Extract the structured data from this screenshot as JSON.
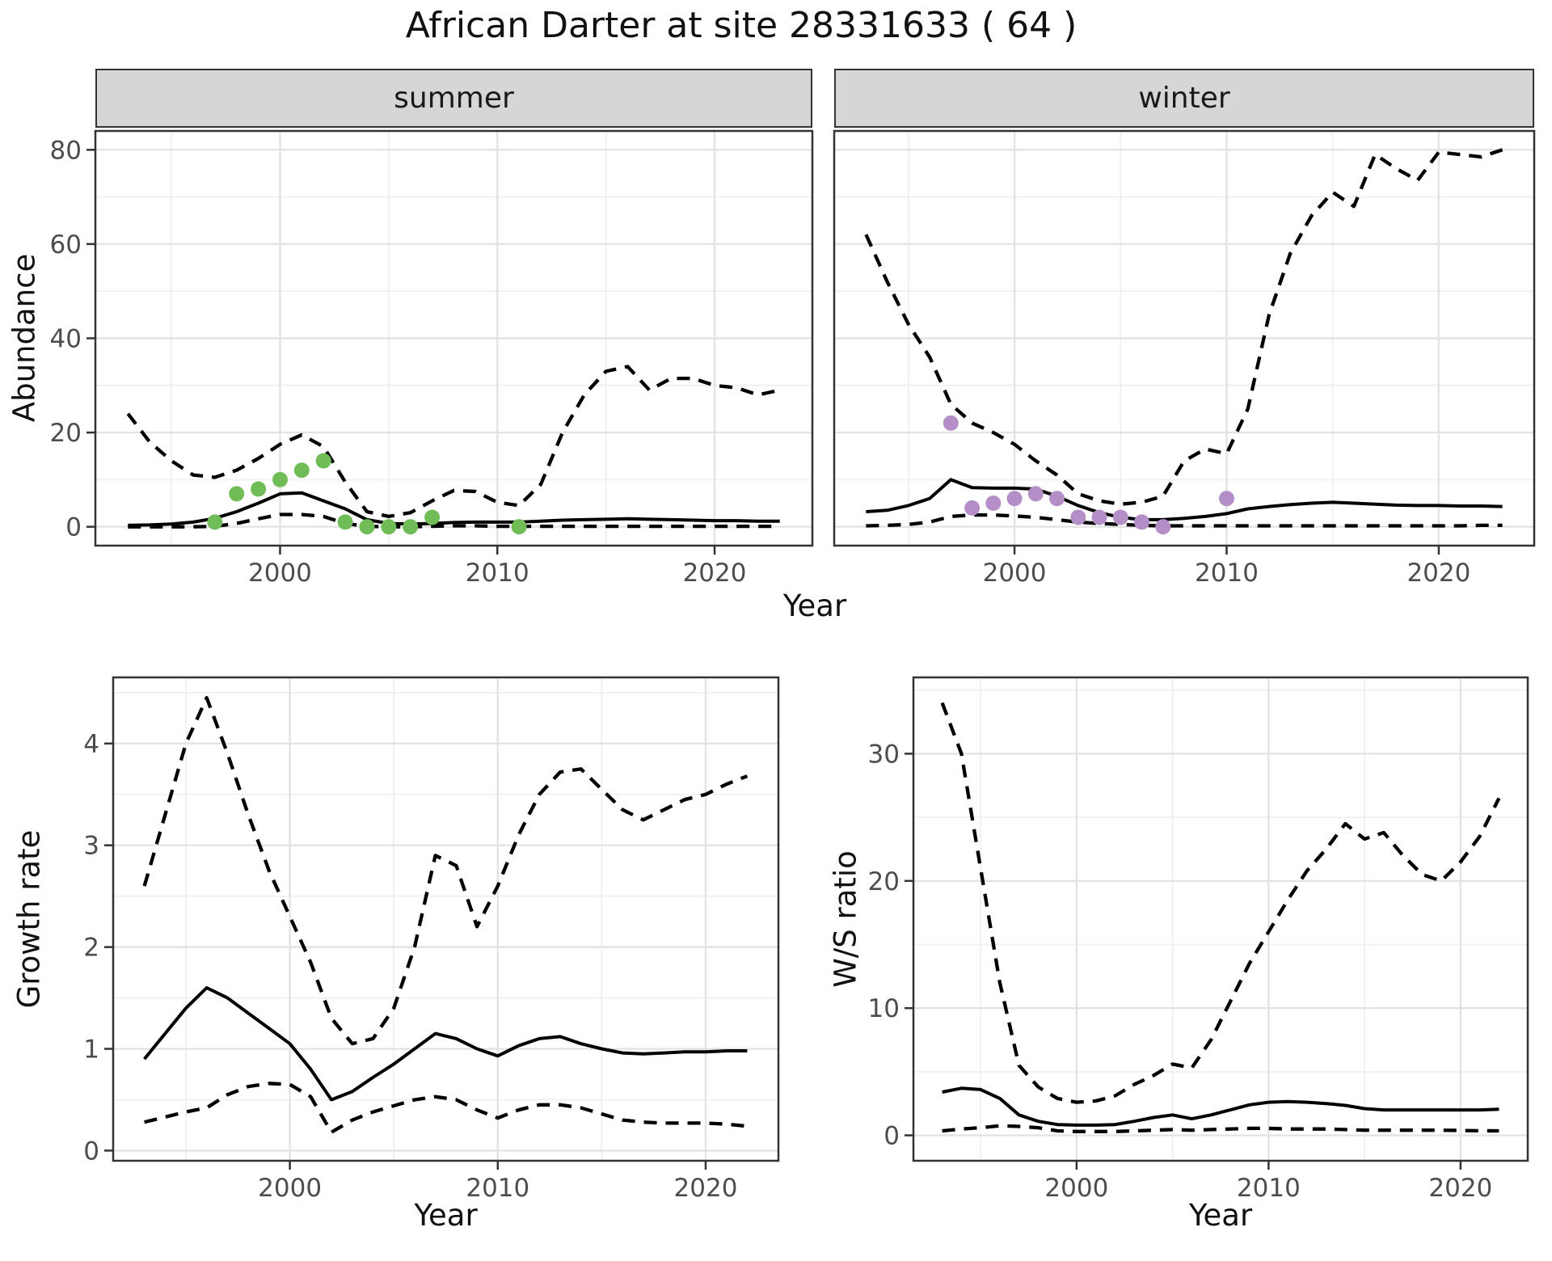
{
  "title": "African Darter at site 28331633 ( 64 )",
  "colors": {
    "summer_points": "#70bd58",
    "winter_points": "#b48ec6",
    "line": "#000000",
    "grid_major": "#e3e3e3",
    "grid_minor": "#f0f0f0",
    "panel_border": "#333333",
    "strip_bg": "#d6d6d6",
    "tick_text": "#4d4d4d"
  },
  "chart_data": [
    {
      "type": "line",
      "panel": "abundance-summer",
      "strip_label": "summer",
      "xlabel": "Year",
      "ylabel": "Abundance",
      "xlim": [
        1991.5,
        2024.5
      ],
      "ylim": [
        -4,
        84
      ],
      "x_ticks": [
        2000,
        2010,
        2020
      ],
      "x_minor": [
        1995,
        2005,
        2015
      ],
      "y_ticks": [
        0,
        20,
        40,
        60,
        80
      ],
      "y_minor": [
        10,
        30,
        50,
        70
      ],
      "grid": true,
      "legend": "none",
      "x": [
        1993,
        1994,
        1995,
        1996,
        1997,
        1998,
        1999,
        2000,
        2001,
        2002,
        2003,
        2004,
        2005,
        2006,
        2007,
        2008,
        2009,
        2010,
        2011,
        2012,
        2013,
        2014,
        2015,
        2016,
        2017,
        2018,
        2019,
        2020,
        2021,
        2022,
        2023
      ],
      "series": [
        {
          "name": "modelled-median",
          "style": "solid",
          "values": [
            0.3,
            0.4,
            0.6,
            1.0,
            1.8,
            3.2,
            5.0,
            7.0,
            7.2,
            5.5,
            3.8,
            1.5,
            0.7,
            0.6,
            0.7,
            0.9,
            1.0,
            1.0,
            1.0,
            1.2,
            1.4,
            1.5,
            1.6,
            1.7,
            1.6,
            1.5,
            1.4,
            1.3,
            1.3,
            1.2,
            1.2
          ]
        },
        {
          "name": "upper-credible-limit",
          "style": "dashed",
          "values": [
            24,
            18,
            14,
            11,
            10.5,
            12,
            14.5,
            17.5,
            19.5,
            17,
            9.5,
            3.2,
            2.2,
            3.0,
            5.5,
            7.7,
            7.5,
            5.2,
            4.5,
            9,
            20,
            28,
            33,
            34,
            29,
            31.5,
            31.5,
            30,
            29.5,
            28,
            29
          ]
        },
        {
          "name": "lower-credible-limit",
          "style": "dashed",
          "values": [
            0,
            0,
            0,
            0,
            0.1,
            0.7,
            1.7,
            2.6,
            2.6,
            2.2,
            0.7,
            0.1,
            0,
            0,
            0.1,
            0.2,
            0.2,
            0.1,
            0.1,
            0.1,
            0.1,
            0.1,
            0.1,
            0.1,
            0.1,
            0.1,
            0.1,
            0.1,
            0.1,
            0.1,
            0.1
          ]
        }
      ],
      "points": {
        "name": "observed-count",
        "color_key": "summer_points",
        "x": [
          1997,
          1998,
          1999,
          2000,
          2001,
          2002,
          2003,
          2004,
          2005,
          2006,
          2007,
          2011
        ],
        "y": [
          1,
          7,
          8,
          10,
          12,
          14,
          1,
          0,
          0,
          0,
          2,
          0
        ]
      }
    },
    {
      "type": "line",
      "panel": "abundance-winter",
      "strip_label": "winter",
      "xlabel": "Year",
      "ylabel": "",
      "xlim": [
        1991.5,
        2024.5
      ],
      "ylim": [
        -4,
        84
      ],
      "x_ticks": [
        2000,
        2010,
        2020
      ],
      "x_minor": [
        1995,
        2005,
        2015
      ],
      "y_ticks": [
        0,
        20,
        40,
        60,
        80
      ],
      "y_minor": [
        10,
        30,
        50,
        70
      ],
      "grid": true,
      "legend": "none",
      "x": [
        1993,
        1994,
        1995,
        1996,
        1997,
        1998,
        1999,
        2000,
        2001,
        2002,
        2003,
        2004,
        2005,
        2006,
        2007,
        2008,
        2009,
        2010,
        2011,
        2012,
        2013,
        2014,
        2015,
        2016,
        2017,
        2018,
        2019,
        2020,
        2021,
        2022,
        2023
      ],
      "series": [
        {
          "name": "modelled-median",
          "style": "solid",
          "values": [
            3.2,
            3.5,
            4.5,
            6.0,
            10.0,
            8.3,
            8.2,
            8.2,
            8.0,
            6.5,
            4.5,
            3.0,
            2.0,
            1.5,
            1.5,
            1.8,
            2.2,
            2.8,
            3.8,
            4.3,
            4.7,
            5.0,
            5.2,
            5.0,
            4.8,
            4.6,
            4.5,
            4.5,
            4.4,
            4.4,
            4.3
          ]
        },
        {
          "name": "upper-credible-limit",
          "style": "dashed",
          "values": [
            62,
            52,
            43,
            36,
            26,
            22,
            20,
            17.5,
            14,
            11,
            7,
            5.5,
            4.8,
            5.2,
            6.5,
            14,
            16.5,
            15.5,
            25,
            45,
            58,
            66,
            71,
            68,
            79,
            76,
            73.5,
            79.5,
            79,
            78.5,
            80
          ]
        },
        {
          "name": "lower-credible-limit",
          "style": "dashed",
          "values": [
            0.2,
            0.3,
            0.5,
            1.0,
            2.2,
            2.5,
            2.5,
            2.3,
            2.0,
            1.5,
            1.0,
            0.7,
            0.5,
            0.3,
            0.2,
            0.2,
            0.2,
            0.2,
            0.2,
            0.2,
            0.2,
            0.2,
            0.2,
            0.2,
            0.2,
            0.2,
            0.2,
            0.2,
            0.2,
            0.3,
            0.3
          ]
        }
      ],
      "points": {
        "name": "observed-count",
        "color_key": "winter_points",
        "x": [
          1997,
          1998,
          1999,
          2000,
          2001,
          2002,
          2003,
          2004,
          2005,
          2006,
          2007,
          2010
        ],
        "y": [
          22,
          4,
          5,
          6,
          7,
          6,
          2,
          2,
          2,
          1,
          0,
          6
        ]
      }
    },
    {
      "type": "line",
      "panel": "growth-rate",
      "strip_label": "",
      "xlabel": "Year",
      "ylabel": "Growth rate",
      "xlim": [
        1991.5,
        2023.5
      ],
      "ylim": [
        -0.1,
        4.65
      ],
      "x_ticks": [
        2000,
        2010,
        2020
      ],
      "x_minor": [
        1995,
        2005,
        2015
      ],
      "y_ticks": [
        0,
        1,
        2,
        3,
        4
      ],
      "y_minor": [
        0.5,
        1.5,
        2.5,
        3.5,
        4.5
      ],
      "grid": true,
      "legend": "none",
      "x": [
        1993,
        1994,
        1995,
        1996,
        1997,
        1998,
        1999,
        2000,
        2001,
        2002,
        2003,
        2004,
        2005,
        2006,
        2007,
        2008,
        2009,
        2010,
        2011,
        2012,
        2013,
        2014,
        2015,
        2016,
        2017,
        2018,
        2019,
        2020,
        2021,
        2022
      ],
      "series": [
        {
          "name": "modelled-median",
          "style": "solid",
          "values": [
            0.9,
            1.15,
            1.4,
            1.6,
            1.5,
            1.35,
            1.2,
            1.05,
            0.8,
            0.5,
            0.58,
            0.72,
            0.85,
            1.0,
            1.15,
            1.1,
            1.0,
            0.93,
            1.03,
            1.1,
            1.12,
            1.05,
            1.0,
            0.96,
            0.95,
            0.96,
            0.97,
            0.97,
            0.98,
            0.98
          ]
        },
        {
          "name": "upper-credible-limit",
          "style": "dashed",
          "values": [
            2.6,
            3.3,
            4.0,
            4.45,
            3.9,
            3.3,
            2.75,
            2.3,
            1.85,
            1.3,
            1.05,
            1.1,
            1.4,
            2.0,
            2.9,
            2.8,
            2.2,
            2.6,
            3.1,
            3.5,
            3.72,
            3.75,
            3.55,
            3.35,
            3.25,
            3.35,
            3.45,
            3.5,
            3.6,
            3.68
          ]
        },
        {
          "name": "lower-credible-limit",
          "style": "dashed",
          "values": [
            0.28,
            0.33,
            0.38,
            0.42,
            0.55,
            0.63,
            0.66,
            0.65,
            0.53,
            0.18,
            0.3,
            0.38,
            0.44,
            0.5,
            0.53,
            0.5,
            0.4,
            0.32,
            0.4,
            0.45,
            0.45,
            0.42,
            0.36,
            0.3,
            0.28,
            0.27,
            0.27,
            0.27,
            0.26,
            0.24
          ]
        }
      ],
      "points": null
    },
    {
      "type": "line",
      "panel": "ws-ratio",
      "strip_label": "",
      "xlabel": "Year",
      "ylabel": "W/S ratio",
      "xlim": [
        1991.5,
        2023.5
      ],
      "ylim": [
        -2,
        36
      ],
      "x_ticks": [
        2000,
        2010,
        2020
      ],
      "x_minor": [
        1995,
        2005,
        2015
      ],
      "y_ticks": [
        0,
        10,
        20,
        30
      ],
      "y_minor": [
        5,
        15,
        25,
        35
      ],
      "grid": true,
      "legend": "none",
      "x": [
        1993,
        1994,
        1995,
        1996,
        1997,
        1998,
        1999,
        2000,
        2001,
        2002,
        2003,
        2004,
        2005,
        2006,
        2007,
        2008,
        2009,
        2010,
        2011,
        2012,
        2013,
        2014,
        2015,
        2016,
        2017,
        2018,
        2019,
        2020,
        2021,
        2022
      ],
      "series": [
        {
          "name": "modelled-median",
          "style": "solid",
          "values": [
            3.4,
            3.7,
            3.6,
            2.9,
            1.6,
            1.1,
            0.85,
            0.8,
            0.8,
            0.85,
            1.1,
            1.4,
            1.6,
            1.3,
            1.6,
            2.0,
            2.4,
            2.6,
            2.65,
            2.6,
            2.5,
            2.35,
            2.1,
            2.0,
            2.0,
            2.0,
            2.0,
            2.0,
            2.0,
            2.05
          ]
        },
        {
          "name": "upper-credible-limit",
          "style": "dashed",
          "values": [
            34,
            30,
            21,
            12,
            5.5,
            3.8,
            2.9,
            2.6,
            2.7,
            3.1,
            4.0,
            4.7,
            5.6,
            5.3,
            7.5,
            10.5,
            13.5,
            16,
            18.5,
            20.8,
            22.5,
            24.5,
            23.3,
            23.8,
            22,
            20.5,
            20,
            21.5,
            23.5,
            26.5
          ]
        },
        {
          "name": "lower-credible-limit",
          "style": "dashed",
          "values": [
            0.35,
            0.5,
            0.6,
            0.75,
            0.7,
            0.6,
            0.35,
            0.3,
            0.3,
            0.3,
            0.35,
            0.4,
            0.45,
            0.4,
            0.45,
            0.5,
            0.55,
            0.55,
            0.5,
            0.5,
            0.5,
            0.45,
            0.4,
            0.4,
            0.4,
            0.4,
            0.4,
            0.38,
            0.36,
            0.35
          ]
        }
      ],
      "points": null
    }
  ]
}
